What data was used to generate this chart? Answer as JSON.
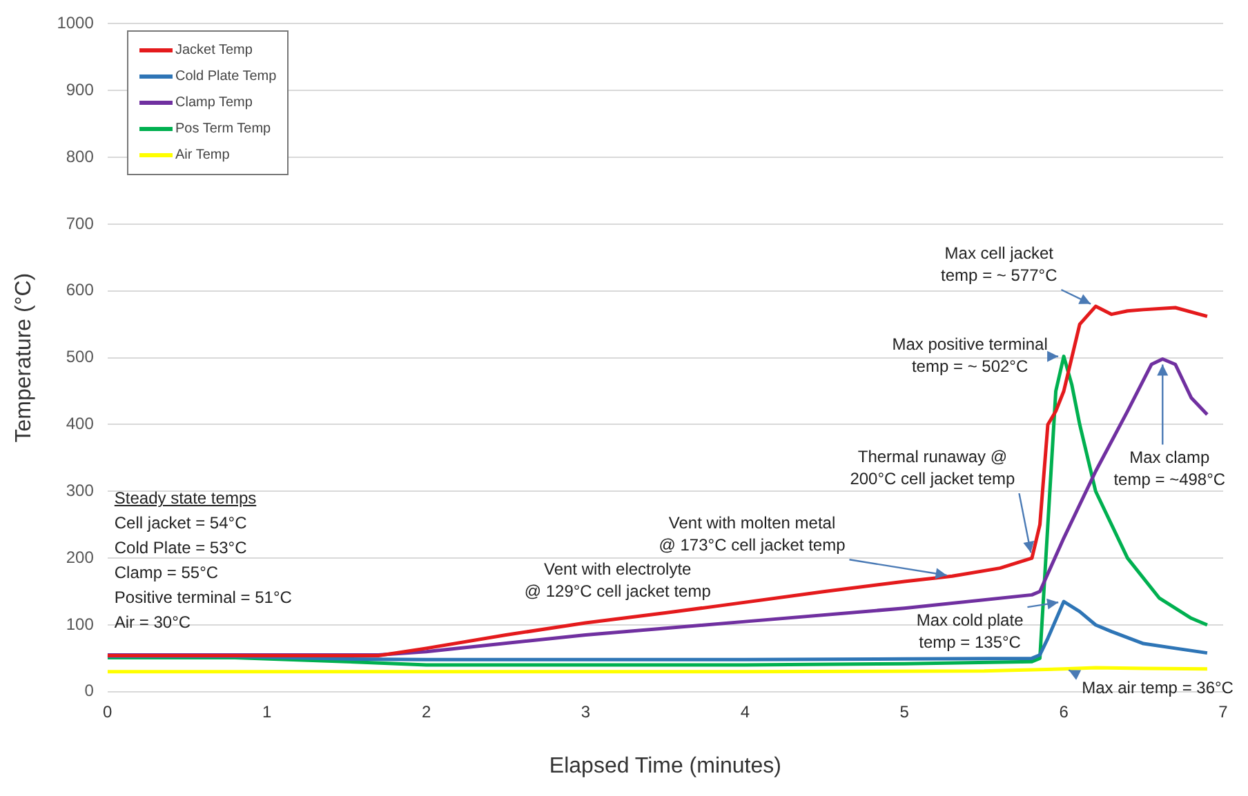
{
  "chart_data": {
    "type": "line",
    "xlabel": "Elapsed Time (minutes)",
    "ylabel": "Temperature (°C)",
    "xlim": [
      0,
      7
    ],
    "xticks": [
      0,
      1,
      2,
      3,
      4,
      5,
      6,
      7
    ],
    "ylim": [
      0,
      1000
    ],
    "yticks": [
      0,
      100,
      200,
      300,
      400,
      500,
      600,
      700,
      800,
      900,
      1000
    ],
    "grid": "y",
    "legend": "top left",
    "marker": "none",
    "line_style": "solid",
    "series": [
      {
        "name": "Jacket Temp",
        "color": "#e41a1c",
        "x": [
          0,
          1,
          1.7,
          2,
          2.5,
          3,
          3.5,
          3.85,
          4.5,
          5,
          5.3,
          5.6,
          5.8,
          5.85,
          5.9,
          5.95,
          6.0,
          6.05,
          6.1,
          6.2,
          6.3,
          6.4,
          6.5,
          6.7,
          6.9
        ],
        "values": [
          54,
          54,
          54,
          65,
          85,
          103,
          118,
          129,
          150,
          165,
          173,
          185,
          200,
          250,
          400,
          420,
          450,
          500,
          550,
          577,
          565,
          570,
          572,
          575,
          562
        ]
      },
      {
        "name": "Cold Plate Temp",
        "color": "#2e75b6",
        "x": [
          0,
          0.8,
          1.5,
          2,
          3,
          4,
          5,
          5.8,
          5.85,
          5.9,
          6.0,
          6.1,
          6.2,
          6.3,
          6.5,
          6.7,
          6.9
        ],
        "values": [
          53,
          53,
          49,
          48,
          48,
          48,
          49,
          50,
          55,
          80,
          135,
          120,
          100,
          90,
          72,
          65,
          58
        ]
      },
      {
        "name": "Clamp Temp",
        "color": "#7030a0",
        "x": [
          0,
          1,
          1.7,
          2,
          3,
          4,
          5,
          5.8,
          5.85,
          6.0,
          6.2,
          6.4,
          6.55,
          6.62,
          6.7,
          6.8,
          6.9
        ],
        "values": [
          55,
          55,
          55,
          60,
          85,
          105,
          125,
          145,
          150,
          230,
          330,
          420,
          490,
          498,
          490,
          440,
          415
        ]
      },
      {
        "name": "Pos Term Temp",
        "color": "#00b050",
        "x": [
          0,
          0.8,
          1.5,
          2,
          3,
          4,
          5,
          5.8,
          5.85,
          5.9,
          5.95,
          6.0,
          6.05,
          6.1,
          6.2,
          6.4,
          6.6,
          6.8,
          6.9
        ],
        "values": [
          51,
          51,
          45,
          40,
          40,
          40,
          42,
          45,
          50,
          250,
          450,
          502,
          460,
          400,
          300,
          200,
          140,
          110,
          100
        ]
      },
      {
        "name": "Air Temp",
        "color": "#ffff00",
        "x": [
          0,
          2,
          4,
          5.5,
          6.0,
          6.2,
          6.5,
          6.9
        ],
        "values": [
          30,
          30,
          30,
          31,
          34,
          36,
          35,
          34
        ]
      }
    ],
    "annotations": [
      {
        "text": "Max cell jacket\ntemp = ~ 577°C",
        "x": 6.2,
        "y": 577
      },
      {
        "text": "Max positive terminal\ntemp = ~ 502°C",
        "x": 6.0,
        "y": 502
      },
      {
        "text": "Thermal runaway @\n200°C cell jacket temp",
        "x": 5.8,
        "y": 200
      },
      {
        "text": "Max clamp\ntemp = ~498°C",
        "x": 6.62,
        "y": 498
      },
      {
        "text": "Vent with molten metal\n@ 173°C cell jacket temp",
        "x": 5.3,
        "y": 173
      },
      {
        "text": "Vent with electrolyte\n@ 129°C cell jacket temp",
        "x": 3.85,
        "y": 129
      },
      {
        "text": "Max cold plate\ntemp = 135°C",
        "x": 6.0,
        "y": 135
      },
      {
        "text": "Max air temp = 36°C",
        "x": 6.0,
        "y": 36
      },
      "Steady state temps\nCell jacket = 54°C\nCold Plate = 53°C\nClamp = 55°C\nPositive terminal = 51°C\nAir = 30°C"
    ]
  }
}
